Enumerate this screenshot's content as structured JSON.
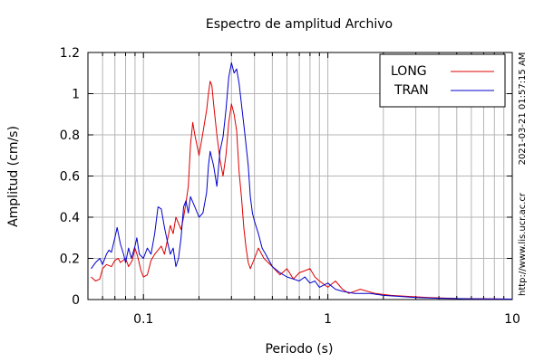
{
  "chart_data": {
    "type": "line",
    "title": "Espectro de amplitud Archivo",
    "xlabel": "Periodo (s)",
    "ylabel": "Amplitud (cm/s)",
    "x_scale": "log",
    "xlim": [
      0.05,
      10
    ],
    "ylim": [
      0,
      1.2
    ],
    "x_ticks": [
      {
        "value": 0.1,
        "label": "0.1"
      },
      {
        "value": 1,
        "label": "1"
      },
      {
        "value": 10,
        "label": "10"
      }
    ],
    "y_ticks": [
      {
        "value": 0,
        "label": "0"
      },
      {
        "value": 0.2,
        "label": "0.2"
      },
      {
        "value": 0.4,
        "label": "0.4"
      },
      {
        "value": 0.6,
        "label": "0.6"
      },
      {
        "value": 0.8,
        "label": "0.8"
      },
      {
        "value": 1,
        "label": "1"
      },
      {
        "value": 1.2,
        "label": "1.2"
      }
    ],
    "grid": true,
    "legend_position": "top-right",
    "series": [
      {
        "name": "LONG",
        "color": "#dd0000",
        "points": [
          [
            0.052,
            0.11
          ],
          [
            0.055,
            0.09
          ],
          [
            0.058,
            0.1
          ],
          [
            0.06,
            0.15
          ],
          [
            0.063,
            0.17
          ],
          [
            0.067,
            0.16
          ],
          [
            0.07,
            0.19
          ],
          [
            0.073,
            0.2
          ],
          [
            0.075,
            0.18
          ],
          [
            0.08,
            0.2
          ],
          [
            0.083,
            0.16
          ],
          [
            0.087,
            0.19
          ],
          [
            0.09,
            0.25
          ],
          [
            0.093,
            0.21
          ],
          [
            0.097,
            0.14
          ],
          [
            0.1,
            0.11
          ],
          [
            0.105,
            0.12
          ],
          [
            0.11,
            0.19
          ],
          [
            0.115,
            0.22
          ],
          [
            0.12,
            0.24
          ],
          [
            0.125,
            0.26
          ],
          [
            0.13,
            0.22
          ],
          [
            0.135,
            0.29
          ],
          [
            0.14,
            0.36
          ],
          [
            0.145,
            0.32
          ],
          [
            0.15,
            0.4
          ],
          [
            0.155,
            0.37
          ],
          [
            0.16,
            0.34
          ],
          [
            0.165,
            0.4
          ],
          [
            0.17,
            0.47
          ],
          [
            0.175,
            0.55
          ],
          [
            0.18,
            0.75
          ],
          [
            0.185,
            0.86
          ],
          [
            0.19,
            0.8
          ],
          [
            0.2,
            0.7
          ],
          [
            0.21,
            0.81
          ],
          [
            0.22,
            0.92
          ],
          [
            0.225,
            1.0
          ],
          [
            0.23,
            1.06
          ],
          [
            0.235,
            1.04
          ],
          [
            0.24,
            0.95
          ],
          [
            0.25,
            0.8
          ],
          [
            0.26,
            0.68
          ],
          [
            0.27,
            0.6
          ],
          [
            0.28,
            0.7
          ],
          [
            0.29,
            0.86
          ],
          [
            0.3,
            0.95
          ],
          [
            0.31,
            0.9
          ],
          [
            0.32,
            0.82
          ],
          [
            0.33,
            0.62
          ],
          [
            0.34,
            0.5
          ],
          [
            0.35,
            0.35
          ],
          [
            0.36,
            0.25
          ],
          [
            0.37,
            0.18
          ],
          [
            0.38,
            0.15
          ],
          [
            0.4,
            0.2
          ],
          [
            0.42,
            0.25
          ],
          [
            0.45,
            0.2
          ],
          [
            0.5,
            0.16
          ],
          [
            0.55,
            0.12
          ],
          [
            0.6,
            0.15
          ],
          [
            0.65,
            0.1
          ],
          [
            0.7,
            0.13
          ],
          [
            0.75,
            0.14
          ],
          [
            0.8,
            0.15
          ],
          [
            0.85,
            0.11
          ],
          [
            0.9,
            0.09
          ],
          [
            1.0,
            0.06
          ],
          [
            1.1,
            0.09
          ],
          [
            1.2,
            0.05
          ],
          [
            1.3,
            0.03
          ],
          [
            1.5,
            0.05
          ],
          [
            1.8,
            0.03
          ],
          [
            2.2,
            0.02
          ],
          [
            2.8,
            0.015
          ],
          [
            3.5,
            0.01
          ],
          [
            5.0,
            0.005
          ],
          [
            7.0,
            0.003
          ],
          [
            10.0,
            0.002
          ]
        ]
      },
      {
        "name": "TRAN",
        "color": "#0000cc",
        "points": [
          [
            0.052,
            0.15
          ],
          [
            0.055,
            0.18
          ],
          [
            0.058,
            0.2
          ],
          [
            0.06,
            0.17
          ],
          [
            0.063,
            0.22
          ],
          [
            0.065,
            0.24
          ],
          [
            0.067,
            0.23
          ],
          [
            0.07,
            0.3
          ],
          [
            0.072,
            0.35
          ],
          [
            0.075,
            0.27
          ],
          [
            0.078,
            0.22
          ],
          [
            0.08,
            0.18
          ],
          [
            0.083,
            0.25
          ],
          [
            0.086,
            0.2
          ],
          [
            0.09,
            0.26
          ],
          [
            0.092,
            0.3
          ],
          [
            0.095,
            0.22
          ],
          [
            0.1,
            0.2
          ],
          [
            0.105,
            0.25
          ],
          [
            0.11,
            0.22
          ],
          [
            0.115,
            0.32
          ],
          [
            0.12,
            0.45
          ],
          [
            0.125,
            0.44
          ],
          [
            0.13,
            0.35
          ],
          [
            0.135,
            0.28
          ],
          [
            0.14,
            0.22
          ],
          [
            0.145,
            0.25
          ],
          [
            0.15,
            0.16
          ],
          [
            0.155,
            0.2
          ],
          [
            0.16,
            0.3
          ],
          [
            0.165,
            0.45
          ],
          [
            0.17,
            0.48
          ],
          [
            0.175,
            0.42
          ],
          [
            0.18,
            0.5
          ],
          [
            0.19,
            0.45
          ],
          [
            0.2,
            0.4
          ],
          [
            0.21,
            0.42
          ],
          [
            0.22,
            0.52
          ],
          [
            0.225,
            0.65
          ],
          [
            0.23,
            0.72
          ],
          [
            0.24,
            0.65
          ],
          [
            0.25,
            0.55
          ],
          [
            0.26,
            0.72
          ],
          [
            0.27,
            0.79
          ],
          [
            0.28,
            0.92
          ],
          [
            0.29,
            1.08
          ],
          [
            0.3,
            1.15
          ],
          [
            0.31,
            1.1
          ],
          [
            0.32,
            1.12
          ],
          [
            0.33,
            1.05
          ],
          [
            0.34,
            0.95
          ],
          [
            0.35,
            0.85
          ],
          [
            0.36,
            0.75
          ],
          [
            0.37,
            0.65
          ],
          [
            0.38,
            0.5
          ],
          [
            0.39,
            0.42
          ],
          [
            0.4,
            0.38
          ],
          [
            0.42,
            0.32
          ],
          [
            0.44,
            0.25
          ],
          [
            0.46,
            0.22
          ],
          [
            0.5,
            0.16
          ],
          [
            0.55,
            0.13
          ],
          [
            0.6,
            0.11
          ],
          [
            0.65,
            0.1
          ],
          [
            0.7,
            0.09
          ],
          [
            0.75,
            0.11
          ],
          [
            0.8,
            0.08
          ],
          [
            0.85,
            0.09
          ],
          [
            0.9,
            0.06
          ],
          [
            1.0,
            0.08
          ],
          [
            1.1,
            0.05
          ],
          [
            1.2,
            0.04
          ],
          [
            1.4,
            0.03
          ],
          [
            1.7,
            0.03
          ],
          [
            2.0,
            0.02
          ],
          [
            2.5,
            0.015
          ],
          [
            3.0,
            0.01
          ],
          [
            4.0,
            0.006
          ],
          [
            5.5,
            0.004
          ],
          [
            7.5,
            0.003
          ],
          [
            10.0,
            0.002
          ]
        ]
      }
    ]
  },
  "side_text": {
    "timestamp": "2021-03-21 01:57:15 AM",
    "url": "http://www.lis.ucr.ac.cr"
  }
}
